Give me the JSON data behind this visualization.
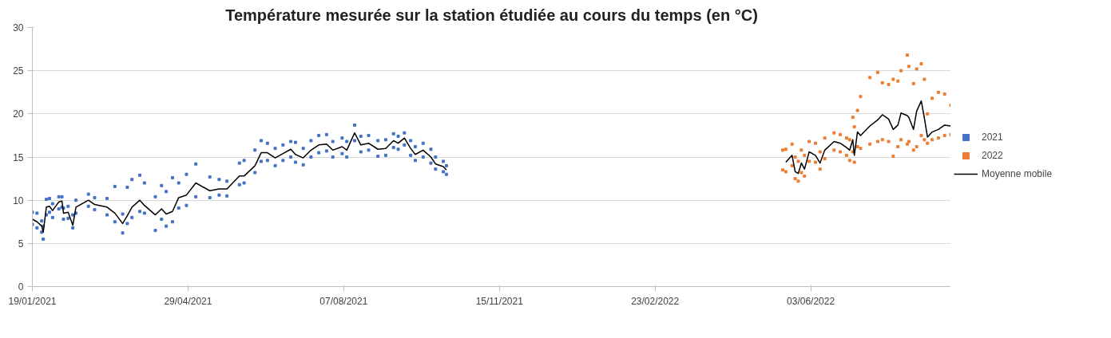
{
  "chart_data": {
    "type": "scatter",
    "title": "Température mesurée sur la station étudiée au cours du temps (en °C)",
    "xlim": [
      "2021-01-19",
      "2022-09-01"
    ],
    "xticks": [
      {
        "value": "2021-01-19",
        "label": "19/01/2021"
      },
      {
        "value": "2021-04-29",
        "label": "29/04/2021"
      },
      {
        "value": "2021-08-07",
        "label": "07/08/2021"
      },
      {
        "value": "2021-11-15",
        "label": "15/11/2021"
      },
      {
        "value": "2022-02-23",
        "label": "23/02/2022"
      },
      {
        "value": "2022-06-03",
        "label": "03/06/2022"
      }
    ],
    "ylim": [
      0,
      30
    ],
    "yticks": [
      0,
      5,
      10,
      15,
      20,
      25,
      30
    ],
    "grid": "y",
    "legend": "right",
    "series": [
      {
        "name": "2021",
        "marker": "square",
        "color": "#4472c4",
        "x": [
          "2021-01-19",
          "2021-01-22",
          "2021-01-25",
          "2021-01-26",
          "2021-01-28",
          "2021-01-30",
          "2021-02-01",
          "2021-02-05",
          "2021-02-07",
          "2021-02-08",
          "2021-02-11",
          "2021-02-14",
          "2021-02-16",
          "2021-02-24",
          "2021-02-28",
          "2021-03-08",
          "2021-03-13",
          "2021-03-18",
          "2021-03-21",
          "2021-03-24",
          "2021-03-29",
          "2021-04-01",
          "2021-04-08",
          "2021-04-12",
          "2021-04-15",
          "2021-04-19",
          "2021-04-23",
          "2021-04-28",
          "2021-05-04",
          "2021-05-13",
          "2021-05-19",
          "2021-05-24",
          "2021-06-01",
          "2021-06-04",
          "2021-06-11",
          "2021-06-15",
          "2021-06-19",
          "2021-06-24",
          "2021-06-29",
          "2021-07-04",
          "2021-07-07",
          "2021-07-12",
          "2021-07-17",
          "2021-07-22",
          "2021-07-27",
          "2021-07-31",
          "2021-08-06",
          "2021-08-09",
          "2021-08-14",
          "2021-08-18",
          "2021-08-23",
          "2021-08-29",
          "2021-09-03",
          "2021-09-08",
          "2021-09-11",
          "2021-09-15",
          "2021-09-19",
          "2021-09-22",
          "2021-09-27",
          "2021-10-02",
          "2021-10-05",
          "2021-10-10",
          "2021-10-12",
          "2021-01-19",
          "2021-01-22",
          "2021-01-25",
          "2021-01-26",
          "2021-01-28",
          "2021-01-30",
          "2021-02-01",
          "2021-02-05",
          "2021-02-07",
          "2021-02-08",
          "2021-02-11",
          "2021-02-14",
          "2021-02-16",
          "2021-02-24",
          "2021-02-28",
          "2021-03-08",
          "2021-03-13",
          "2021-03-18",
          "2021-03-21",
          "2021-03-24",
          "2021-03-29",
          "2021-04-01",
          "2021-04-08",
          "2021-04-12",
          "2021-04-15",
          "2021-04-19",
          "2021-04-23",
          "2021-04-28",
          "2021-05-04",
          "2021-05-13",
          "2021-05-19",
          "2021-05-24",
          "2021-06-01",
          "2021-06-04",
          "2021-06-11",
          "2021-06-15",
          "2021-06-19",
          "2021-06-24",
          "2021-06-29",
          "2021-07-04",
          "2021-07-07",
          "2021-07-12",
          "2021-07-17",
          "2021-07-22",
          "2021-07-27",
          "2021-07-31",
          "2021-08-06",
          "2021-08-09",
          "2021-08-14",
          "2021-08-18",
          "2021-08-23",
          "2021-08-29",
          "2021-09-03",
          "2021-09-08",
          "2021-09-11",
          "2021-09-15",
          "2021-09-19",
          "2021-09-22",
          "2021-09-27",
          "2021-10-02",
          "2021-10-05",
          "2021-10-10",
          "2021-10-12"
        ],
        "values": [
          8.6,
          8.5,
          7.6,
          7.0,
          10.1,
          10.2,
          9.6,
          10.4,
          10.4,
          9.1,
          9.3,
          8.3,
          10.0,
          10.7,
          10.3,
          10.2,
          11.6,
          8.4,
          11.5,
          12.4,
          12.9,
          12.0,
          10.4,
          11.7,
          11.0,
          12.6,
          12.0,
          13.0,
          14.2,
          12.7,
          12.4,
          12.2,
          14.3,
          14.6,
          15.8,
          16.9,
          16.6,
          16.0,
          16.4,
          16.8,
          16.7,
          16.0,
          16.9,
          17.5,
          17.6,
          16.8,
          17.2,
          16.8,
          18.7,
          17.4,
          17.5,
          16.9,
          17.0,
          17.7,
          17.4,
          17.8,
          16.9,
          16.2,
          16.6,
          15.9,
          15.0,
          14.5,
          14.0,
          7.2,
          6.8,
          6.3,
          5.5,
          8.3,
          8.6,
          8.0,
          9.0,
          9.2,
          7.8,
          7.9,
          6.8,
          8.5,
          9.3,
          8.9,
          8.3,
          7.5,
          6.2,
          7.3,
          8.0,
          8.7,
          8.5,
          6.5,
          7.8,
          7.0,
          7.5,
          9.1,
          9.4,
          10.4,
          10.3,
          10.6,
          10.5,
          11.8,
          12.0,
          13.2,
          14.5,
          14.6,
          14.0,
          14.6,
          15.0,
          14.4,
          14.1,
          15.0,
          15.5,
          15.7,
          15.0,
          15.4,
          15.0,
          16.9,
          15.6,
          15.8,
          15.1,
          15.2,
          16.1,
          15.9,
          16.4,
          15.2,
          14.6,
          15.0,
          14.3,
          13.6,
          13.3,
          13.0
        ]
      },
      {
        "name": "2022",
        "marker": "square",
        "color": "#ed7d31",
        "x": [
          "2022-05-16",
          "2022-05-18",
          "2022-05-22",
          "2022-05-24",
          "2022-05-26",
          "2022-05-28",
          "2022-05-30",
          "2022-06-02",
          "2022-06-06",
          "2022-06-09",
          "2022-06-12",
          "2022-06-18",
          "2022-06-22",
          "2022-06-26",
          "2022-06-28",
          "2022-06-30",
          "2022-07-01",
          "2022-07-03",
          "2022-07-05",
          "2022-07-11",
          "2022-07-16",
          "2022-07-19",
          "2022-07-23",
          "2022-07-26",
          "2022-07-29",
          "2022-07-31",
          "2022-08-04",
          "2022-08-05",
          "2022-08-08",
          "2022-08-10",
          "2022-08-13",
          "2022-08-15",
          "2022-08-17",
          "2022-08-20",
          "2022-08-24",
          "2022-08-28",
          "2022-09-01",
          "2022-05-16",
          "2022-05-18",
          "2022-05-22",
          "2022-05-24",
          "2022-05-26",
          "2022-05-28",
          "2022-05-30",
          "2022-06-02",
          "2022-06-06",
          "2022-06-09",
          "2022-06-12",
          "2022-06-18",
          "2022-06-22",
          "2022-06-26",
          "2022-06-28",
          "2022-06-30",
          "2022-07-01",
          "2022-07-03",
          "2022-07-05",
          "2022-07-11",
          "2022-07-16",
          "2022-07-19",
          "2022-07-23",
          "2022-07-26",
          "2022-07-29",
          "2022-07-31",
          "2022-08-04",
          "2022-08-05",
          "2022-08-08",
          "2022-08-10",
          "2022-08-13",
          "2022-08-15",
          "2022-08-17",
          "2022-08-20",
          "2022-08-24",
          "2022-08-28",
          "2022-09-01"
        ],
        "values": [
          15.8,
          15.9,
          16.5,
          15.0,
          14.5,
          15.8,
          15.2,
          16.8,
          16.6,
          15.6,
          17.2,
          17.8,
          17.6,
          17.2,
          17.0,
          19.6,
          18.5,
          20.4,
          22.0,
          24.2,
          24.8,
          23.6,
          23.4,
          24.0,
          23.8,
          25.0,
          26.8,
          25.5,
          23.5,
          25.2,
          25.8,
          24.0,
          20.0,
          21.8,
          22.5,
          22.3,
          21.0,
          13.5,
          13.3,
          14.0,
          12.5,
          12.2,
          13.2,
          12.8,
          14.5,
          14.4,
          13.6,
          14.8,
          15.8,
          15.6,
          15.2,
          14.6,
          15.6,
          14.4,
          16.2,
          16.0,
          16.5,
          16.8,
          17.0,
          16.8,
          15.1,
          16.2,
          17.0,
          16.5,
          16.8,
          15.8,
          16.2,
          17.5,
          17.0,
          16.6,
          17.0,
          17.2,
          17.5,
          17.6
        ]
      },
      {
        "name": "Moyenne mobile",
        "type": "line",
        "marker": "none",
        "color": "#000000",
        "x": [
          "2021-01-19",
          "2021-01-22",
          "2021-01-25",
          "2021-01-26",
          "2021-01-28",
          "2021-01-30",
          "2021-02-01",
          "2021-02-05",
          "2021-02-07",
          "2021-02-08",
          "2021-02-11",
          "2021-02-14",
          "2021-02-16",
          "2021-02-24",
          "2021-02-28",
          "2021-03-08",
          "2021-03-13",
          "2021-03-18",
          "2021-03-21",
          "2021-03-24",
          "2021-03-29",
          "2021-04-01",
          "2021-04-08",
          "2021-04-12",
          "2021-04-15",
          "2021-04-19",
          "2021-04-23",
          "2021-04-28",
          "2021-05-04",
          "2021-05-13",
          "2021-05-19",
          "2021-05-24",
          "2021-06-01",
          "2021-06-04",
          "2021-06-11",
          "2021-06-15",
          "2021-06-19",
          "2021-06-24",
          "2021-06-29",
          "2021-07-04",
          "2021-07-07",
          "2021-07-12",
          "2021-07-17",
          "2021-07-22",
          "2021-07-27",
          "2021-07-31",
          "2021-08-06",
          "2021-08-09",
          "2021-08-14",
          "2021-08-18",
          "2021-08-23",
          "2021-08-29",
          "2021-09-03",
          "2021-09-08",
          "2021-09-11",
          "2021-09-15",
          "2021-09-19",
          "2021-09-22",
          "2021-09-27",
          "2021-10-02",
          "2021-10-05",
          "2021-10-10",
          "2021-10-12",
          "2022-01-01",
          "2022-05-18",
          "2022-05-22",
          "2022-05-24",
          "2022-05-26",
          "2022-05-28",
          "2022-05-30",
          "2022-06-02",
          "2022-06-06",
          "2022-06-09",
          "2022-06-12",
          "2022-06-18",
          "2022-06-22",
          "2022-06-26",
          "2022-06-28",
          "2022-06-30",
          "2022-07-01",
          "2022-07-03",
          "2022-07-05",
          "2022-07-11",
          "2022-07-16",
          "2022-07-19",
          "2022-07-23",
          "2022-07-26",
          "2022-07-29",
          "2022-07-31",
          "2022-08-04",
          "2022-08-05",
          "2022-08-08",
          "2022-08-10",
          "2022-08-13",
          "2022-08-15",
          "2022-08-17",
          "2022-08-20",
          "2022-08-24",
          "2022-08-28",
          "2022-09-01"
        ],
        "values": [
          7.8,
          7.5,
          7.0,
          6.3,
          9.2,
          9.3,
          8.8,
          9.8,
          9.9,
          8.5,
          8.6,
          7.1,
          9.2,
          10.0,
          9.5,
          9.2,
          8.5,
          7.3,
          8.2,
          9.2,
          10.0,
          9.4,
          8.3,
          9.0,
          8.4,
          8.7,
          10.3,
          10.6,
          12.0,
          11.1,
          11.3,
          11.3,
          12.8,
          12.8,
          14.0,
          15.5,
          15.5,
          14.9,
          15.4,
          15.9,
          15.3,
          14.9,
          15.8,
          16.4,
          16.5,
          15.8,
          16.2,
          15.8,
          17.8,
          16.4,
          16.6,
          15.9,
          16.0,
          16.9,
          16.6,
          17.2,
          16.0,
          15.3,
          15.8,
          15.0,
          14.2,
          13.9,
          13.5,
          null,
          14.4,
          15.2,
          13.3,
          13.1,
          14.3,
          13.6,
          15.6,
          15.2,
          14.3,
          15.8,
          16.8,
          16.6,
          16.1,
          15.8,
          17.0,
          15.2,
          17.9,
          17.5,
          18.6,
          19.3,
          19.9,
          19.4,
          18.2,
          18.7,
          20.1,
          19.8,
          19.6,
          18.2,
          20.3,
          21.5,
          19.5,
          17.3,
          17.9,
          18.2,
          18.7,
          18.6
        ]
      }
    ]
  }
}
